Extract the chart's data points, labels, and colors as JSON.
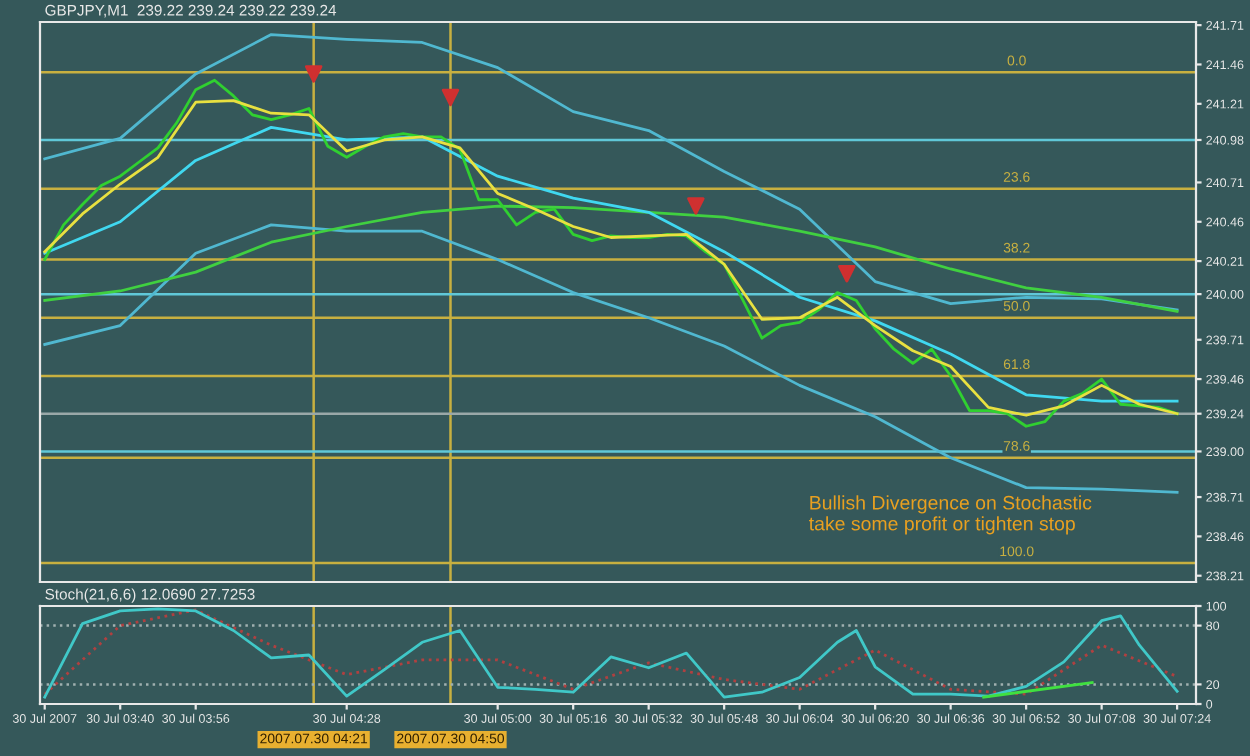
{
  "chart_data": [
    {
      "type": "line",
      "title": "GBPJPY,M1  239.22 239.24 239.22 239.24",
      "annotations": [
        "Bullish Divergence on Stochastic\ntake some profit or tighten stop",
        {
          "text": "0.0",
          "x": "2007-07-30T06:50",
          "y": 241.41
        },
        {
          "text": "23.6",
          "x": "2007-07-30T06:50",
          "y": 240.67
        },
        {
          "text": "38.2",
          "x": "2007-07-30T06:50",
          "y": 240.22
        },
        {
          "text": "50.0",
          "x": "2007-07-30T06:50",
          "y": 239.85
        },
        {
          "text": "61.8",
          "x": "2007-07-30T06:50",
          "y": 239.48
        },
        {
          "text": "78.6",
          "x": "2007-07-30T06:50",
          "y": 238.96
        },
        {
          "text": "100.0",
          "x": "2007-07-30T06:50",
          "y": 238.29
        }
      ],
      "xlim": [
        "2007-07-30T03:23",
        "2007-07-30T07:28"
      ],
      "ylim": [
        238.17,
        241.73
      ],
      "tick_labels": "y",
      "yticks": [
        241.71,
        241.46,
        241.21,
        240.98,
        240.71,
        240.46,
        240.21,
        {
          "value": 240,
          "label": "240.00"
        },
        239.71,
        239.46,
        239.24,
        {
          "value": 239,
          "label": "239.00"
        },
        238.71,
        238.46,
        238.21
      ],
      "ref_lines": [
        {
          "axis": "x",
          "value": "2007-07-30T04:21",
          "color": "#c8b040"
        },
        {
          "axis": "x",
          "value": "2007-07-30T04:50",
          "color": "#c8b040"
        },
        {
          "axis": "y",
          "value": 241.41,
          "color": "#c8b040"
        },
        {
          "axis": "y",
          "value": 240.67,
          "color": "#c8b040"
        },
        {
          "axis": "y",
          "value": 240.22,
          "color": "#c8b040"
        },
        {
          "axis": "y",
          "value": 239.85,
          "color": "#c8b040"
        },
        {
          "axis": "y",
          "value": 239.48,
          "color": "#c8b040"
        },
        {
          "axis": "y",
          "value": 238.96,
          "color": "#c8b040"
        },
        {
          "axis": "y",
          "value": 238.29,
          "color": "#c8b040"
        },
        {
          "axis": "y",
          "value": 240.98,
          "color": "#60c8d8"
        },
        {
          "axis": "y",
          "value": 240.0,
          "color": "#60c8d8"
        },
        {
          "axis": "y",
          "value": 239.0,
          "color": "#60c8d8"
        },
        {
          "axis": "y",
          "value": 239.24,
          "color": "#9aa8a8"
        }
      ],
      "series": [
        {
          "color": "#50b8d0",
          "x": [
            "2007-07-30T03:24",
            "2007-07-30T03:40",
            "2007-07-30T03:56",
            "2007-07-30T04:12",
            "2007-07-30T04:28",
            "2007-07-30T04:44",
            "2007-07-30T05:00",
            "2007-07-30T05:16",
            "2007-07-30T05:32",
            "2007-07-30T05:48",
            "2007-07-30T06:04",
            "2007-07-30T06:20",
            "2007-07-30T06:36",
            "2007-07-30T06:52",
            "2007-07-30T07:08",
            "2007-07-30T07:24"
          ],
          "values": [
            240.86,
            240.99,
            241.4,
            241.65,
            241.62,
            241.6,
            241.44,
            241.16,
            241.04,
            240.78,
            240.54,
            240.08,
            239.94,
            239.98,
            239.97,
            239.9
          ]
        },
        {
          "color": "#50b8d0",
          "x": [
            "2007-07-30T03:24",
            "2007-07-30T03:40",
            "2007-07-30T03:56",
            "2007-07-30T04:12",
            "2007-07-30T04:28",
            "2007-07-30T04:44",
            "2007-07-30T05:00",
            "2007-07-30T05:16",
            "2007-07-30T05:32",
            "2007-07-30T05:48",
            "2007-07-30T06:04",
            "2007-07-30T06:20",
            "2007-07-30T06:36",
            "2007-07-30T06:52",
            "2007-07-30T07:08",
            "2007-07-30T07:24"
          ],
          "values": [
            239.68,
            239.8,
            240.26,
            240.44,
            240.4,
            240.4,
            240.22,
            240.01,
            239.85,
            239.67,
            239.42,
            239.22,
            238.96,
            238.77,
            238.76,
            238.74
          ]
        },
        {
          "color": "#40d040",
          "x": [
            "2007-07-30T03:24",
            "2007-07-30T03:40",
            "2007-07-30T03:56",
            "2007-07-30T04:12",
            "2007-07-30T04:28",
            "2007-07-30T04:44",
            "2007-07-30T05:00",
            "2007-07-30T05:16",
            "2007-07-30T05:32",
            "2007-07-30T05:48",
            "2007-07-30T06:04",
            "2007-07-30T06:20",
            "2007-07-30T06:36",
            "2007-07-30T06:52",
            "2007-07-30T07:08",
            "2007-07-30T07:24"
          ],
          "values": [
            239.96,
            240.02,
            240.14,
            240.33,
            240.43,
            240.52,
            240.56,
            240.55,
            240.52,
            240.49,
            240.4,
            240.3,
            240.16,
            240.04,
            239.98,
            239.89
          ]
        },
        {
          "color": "#40d8f0",
          "x": [
            "2007-07-30T03:24",
            "2007-07-30T03:40",
            "2007-07-30T03:56",
            "2007-07-30T04:12",
            "2007-07-30T04:28",
            "2007-07-30T04:44",
            "2007-07-30T05:00",
            "2007-07-30T05:16",
            "2007-07-30T05:32",
            "2007-07-30T05:48",
            "2007-07-30T06:04",
            "2007-07-30T06:20",
            "2007-07-30T06:36",
            "2007-07-30T06:52",
            "2007-07-30T07:08",
            "2007-07-30T07:24"
          ],
          "values": [
            240.26,
            240.46,
            240.85,
            241.06,
            240.98,
            241.0,
            240.75,
            240.61,
            240.52,
            240.27,
            239.98,
            239.83,
            239.62,
            239.36,
            239.32,
            239.32
          ]
        },
        {
          "color": "#30d030",
          "x": [
            "2007-07-30T03:24",
            "2007-07-30T03:28",
            "2007-07-30T03:32",
            "2007-07-30T03:36",
            "2007-07-30T03:40",
            "2007-07-30T03:44",
            "2007-07-30T03:48",
            "2007-07-30T03:52",
            "2007-07-30T03:56",
            "2007-07-30T04:00",
            "2007-07-30T04:04",
            "2007-07-30T04:08",
            "2007-07-30T04:12",
            "2007-07-30T04:16",
            "2007-07-30T04:20",
            "2007-07-30T04:24",
            "2007-07-30T04:28",
            "2007-07-30T04:32",
            "2007-07-30T04:36",
            "2007-07-30T04:40",
            "2007-07-30T04:44",
            "2007-07-30T04:48",
            "2007-07-30T04:52",
            "2007-07-30T04:56",
            "2007-07-30T05:00",
            "2007-07-30T05:04",
            "2007-07-30T05:08",
            "2007-07-30T05:12",
            "2007-07-30T05:16",
            "2007-07-30T05:20",
            "2007-07-30T05:24",
            "2007-07-30T05:28",
            "2007-07-30T05:32",
            "2007-07-30T05:36",
            "2007-07-30T05:40",
            "2007-07-30T05:44",
            "2007-07-30T05:48",
            "2007-07-30T05:52",
            "2007-07-30T05:56",
            "2007-07-30T06:00",
            "2007-07-30T06:04",
            "2007-07-30T06:08",
            "2007-07-30T06:12",
            "2007-07-30T06:16",
            "2007-07-30T06:20",
            "2007-07-30T06:24",
            "2007-07-30T06:28",
            "2007-07-30T06:32",
            "2007-07-30T06:36",
            "2007-07-30T06:40",
            "2007-07-30T06:44",
            "2007-07-30T06:48",
            "2007-07-30T06:52",
            "2007-07-30T06:56",
            "2007-07-30T07:00",
            "2007-07-30T07:04",
            "2007-07-30T07:08",
            "2007-07-30T07:12",
            "2007-07-30T07:16",
            "2007-07-30T07:20",
            "2007-07-30T07:24"
          ],
          "values": [
            240.22,
            240.44,
            240.57,
            240.69,
            240.75,
            240.84,
            240.93,
            241.09,
            241.3,
            241.36,
            241.26,
            241.14,
            241.11,
            241.14,
            241.18,
            240.94,
            240.87,
            240.94,
            241.0,
            241.02,
            241.0,
            241.0,
            240.92,
            240.6,
            240.6,
            240.44,
            240.52,
            240.54,
            240.38,
            240.34,
            240.37,
            240.36,
            240.36,
            240.38,
            240.37,
            240.27,
            240.19,
            239.96,
            239.72,
            239.8,
            239.82,
            239.9,
            240.01,
            239.96,
            239.78,
            239.65,
            239.56,
            239.65,
            239.48,
            239.26,
            239.26,
            239.24,
            239.16,
            239.19,
            239.32,
            239.37,
            239.46,
            239.3,
            239.29,
            239.28,
            239.24
          ]
        },
        {
          "color": "#e8e040",
          "x": [
            "2007-07-30T03:24",
            "2007-07-30T03:32",
            "2007-07-30T03:40",
            "2007-07-30T03:48",
            "2007-07-30T03:56",
            "2007-07-30T04:04",
            "2007-07-30T04:12",
            "2007-07-30T04:20",
            "2007-07-30T04:28",
            "2007-07-30T04:36",
            "2007-07-30T04:44",
            "2007-07-30T04:52",
            "2007-07-30T05:00",
            "2007-07-30T05:08",
            "2007-07-30T05:16",
            "2007-07-30T05:24",
            "2007-07-30T05:32",
            "2007-07-30T05:40",
            "2007-07-30T05:48",
            "2007-07-30T05:56",
            "2007-07-30T06:04",
            "2007-07-30T06:12",
            "2007-07-30T06:20",
            "2007-07-30T06:28",
            "2007-07-30T06:36",
            "2007-07-30T06:44",
            "2007-07-30T06:52",
            "2007-07-30T07:00",
            "2007-07-30T07:08",
            "2007-07-30T07:16",
            "2007-07-30T07:24"
          ],
          "values": [
            240.27,
            240.51,
            240.7,
            240.87,
            241.22,
            241.23,
            241.15,
            241.14,
            240.91,
            240.98,
            241.0,
            240.93,
            240.64,
            240.54,
            240.43,
            240.36,
            240.37,
            240.38,
            240.19,
            239.84,
            239.85,
            239.98,
            239.8,
            239.64,
            239.54,
            239.28,
            239.23,
            239.29,
            239.42,
            239.3,
            239.24
          ]
        },
        {
          "type": "scatter",
          "marker": "triangle",
          "color": "#d03030",
          "x": [
            "2007-07-30T04:21",
            "2007-07-30T04:50",
            "2007-07-30T05:42",
            "2007-07-30T06:14"
          ],
          "values": [
            241.4,
            241.25,
            240.56,
            240.13
          ]
        }
      ]
    },
    {
      "type": "line",
      "title": "Stoch(21,6,6) 12.0690 27.7253",
      "xlim": [
        "2007-07-30T03:23",
        "2007-07-30T07:28"
      ],
      "ylim": [
        0,
        100
      ],
      "yticks": [
        100,
        80,
        20,
        0
      ],
      "xticks": [
        {
          "value": "2007-07-30T03:24",
          "label": "30 Jul 2007"
        },
        {
          "value": "2007-07-30T03:40",
          "label": "30 Jul 03:40"
        },
        {
          "value": "2007-07-30T03:56",
          "label": "30 Jul 03:56"
        },
        {
          "value": "2007-07-30T04:28",
          "label": "30 Jul 04:28"
        },
        {
          "value": "2007-07-30T05:00",
          "label": "30 Jul 05:00"
        },
        {
          "value": "2007-07-30T05:16",
          "label": "30 Jul 05:16"
        },
        {
          "value": "2007-07-30T05:32",
          "label": "30 Jul 05:32"
        },
        {
          "value": "2007-07-30T05:48",
          "label": "30 Jul 05:48"
        },
        {
          "value": "2007-07-30T06:04",
          "label": "30 Jul 06:04"
        },
        {
          "value": "2007-07-30T06:20",
          "label": "30 Jul 06:20"
        },
        {
          "value": "2007-07-30T06:36",
          "label": "30 Jul 06:36"
        },
        {
          "value": "2007-07-30T06:52",
          "label": "30 Jul 06:52"
        },
        {
          "value": "2007-07-30T07:08",
          "label": "30 Jul 07:08"
        },
        {
          "value": "2007-07-30T07:24",
          "label": "30 Jul 07:24"
        }
      ],
      "ref_lines": [
        {
          "axis": "x",
          "value": "2007-07-30T04:21",
          "label": "2007.07.30 04:21",
          "color": "#c8b040"
        },
        {
          "axis": "x",
          "value": "2007-07-30T04:50",
          "label": "2007.07.30 04:50",
          "color": "#c8b040"
        },
        {
          "axis": "y",
          "value": 80,
          "color": "#a0b0b0",
          "line_style": "dotted"
        },
        {
          "axis": "y",
          "value": 20,
          "color": "#a0b0b0",
          "line_style": "dotted"
        }
      ],
      "series": [
        {
          "color": "#b04040",
          "line_style": "dotted",
          "x": [
            "2007-07-30T03:24",
            "2007-07-30T03:40",
            "2007-07-30T03:56",
            "2007-07-30T04:12",
            "2007-07-30T04:28",
            "2007-07-30T04:44",
            "2007-07-30T05:00",
            "2007-07-30T05:16",
            "2007-07-30T05:32",
            "2007-07-30T05:48",
            "2007-07-30T06:04",
            "2007-07-30T06:20",
            "2007-07-30T06:36",
            "2007-07-30T06:52",
            "2007-07-30T07:08",
            "2007-07-30T07:24"
          ],
          "values": [
            10,
            80,
            96,
            60,
            30,
            45,
            45,
            15,
            42,
            25,
            15,
            55,
            15,
            10,
            60,
            28
          ]
        },
        {
          "color": "#40c8c8",
          "x": [
            "2007-07-30T03:24",
            "2007-07-30T03:32",
            "2007-07-30T03:40",
            "2007-07-30T03:48",
            "2007-07-30T03:56",
            "2007-07-30T04:04",
            "2007-07-30T04:12",
            "2007-07-30T04:20",
            "2007-07-30T04:28",
            "2007-07-30T04:36",
            "2007-07-30T04:44",
            "2007-07-30T04:52",
            "2007-07-30T05:00",
            "2007-07-30T05:08",
            "2007-07-30T05:16",
            "2007-07-30T05:24",
            "2007-07-30T05:32",
            "2007-07-30T05:40",
            "2007-07-30T05:48",
            "2007-07-30T05:56",
            "2007-07-30T06:04",
            "2007-07-30T06:12",
            "2007-07-30T06:16",
            "2007-07-30T06:20",
            "2007-07-30T06:28",
            "2007-07-30T06:36",
            "2007-07-30T06:44",
            "2007-07-30T06:52",
            "2007-07-30T07:00",
            "2007-07-30T07:08",
            "2007-07-30T07:12",
            "2007-07-30T07:16",
            "2007-07-30T07:24"
          ],
          "values": [
            7,
            82,
            95,
            97,
            95,
            75,
            47,
            50,
            8,
            35,
            63,
            75,
            17,
            15,
            12,
            48,
            37,
            52,
            7,
            12,
            27,
            63,
            75,
            38,
            10,
            10,
            8,
            18,
            43,
            85,
            90,
            60,
            13
          ]
        },
        {
          "color": "#40e040",
          "x": [
            "2007-07-30T06:43",
            "2007-07-30T07:06"
          ],
          "values": [
            7,
            22
          ]
        }
      ]
    }
  ]
}
